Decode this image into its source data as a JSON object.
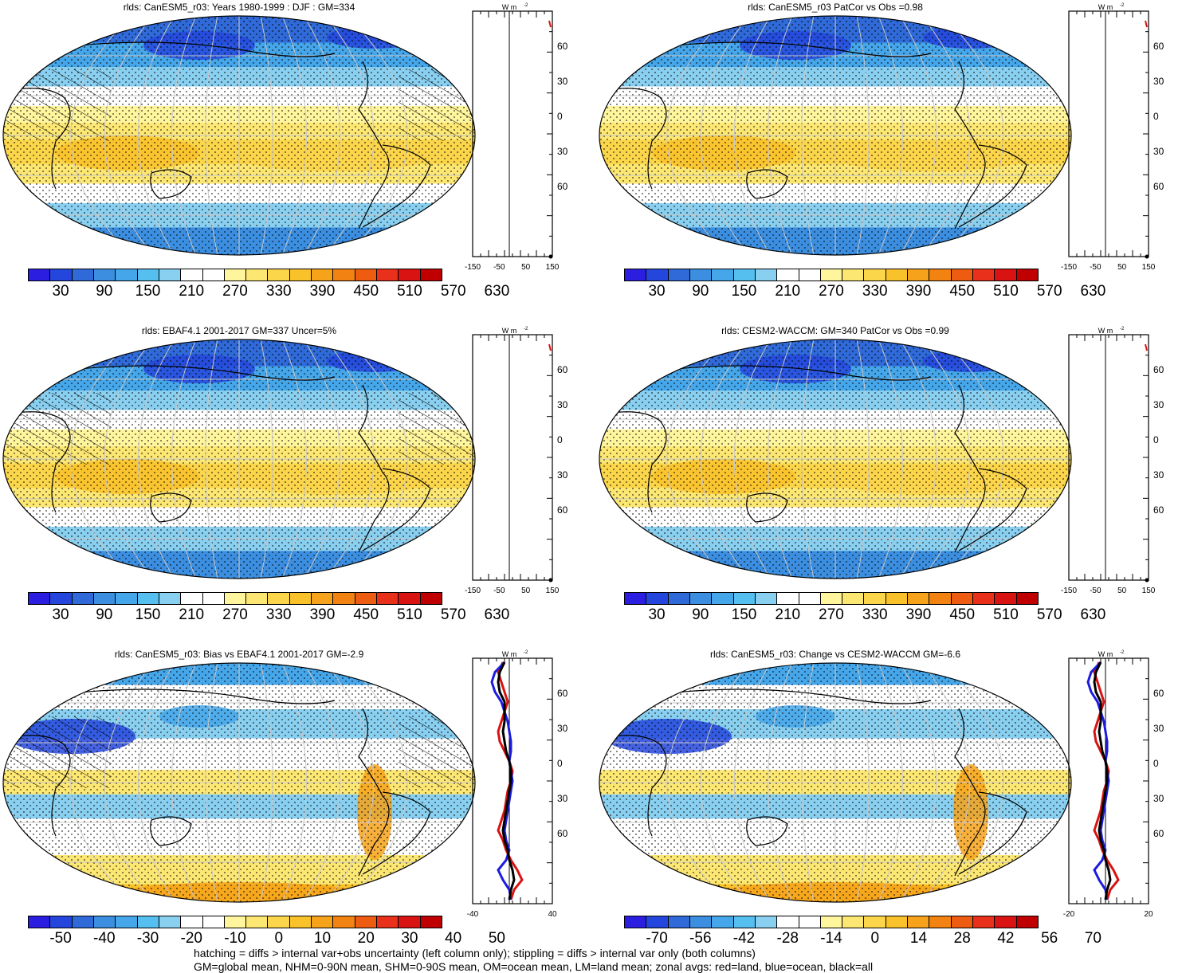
{
  "panels": [
    {
      "title": "rlds: CanESM5_r03: Years 1980-1999 : DJF : GM=334",
      "ticks": [
        "30",
        "90",
        "150",
        "210",
        "270",
        "330",
        "390",
        "450",
        "510",
        "570",
        "630"
      ],
      "scale": "abs",
      "zonal_ticks": [
        "-150",
        "-50",
        "50",
        "150"
      ],
      "zonal_unit": "W m",
      "lines": false
    },
    {
      "title": "rlds: CanESM5_r03 PatCor vs Obs =0.98",
      "ticks": [
        "30",
        "90",
        "150",
        "210",
        "270",
        "330",
        "390",
        "450",
        "510",
        "570",
        "630"
      ],
      "scale": "abs",
      "zonal_ticks": [
        "-150",
        "-50",
        "50",
        "150"
      ],
      "zonal_unit": "W m",
      "lines": false
    },
    {
      "title": "rlds: EBAF4.1 2001-2017 GM=337 Uncer=5%",
      "ticks": [
        "30",
        "90",
        "150",
        "210",
        "270",
        "330",
        "390",
        "450",
        "510",
        "570",
        "630"
      ],
      "scale": "abs",
      "zonal_ticks": [
        "-150",
        "-50",
        "50",
        "150"
      ],
      "zonal_unit": "W m",
      "lines": false
    },
    {
      "title": "rlds: CESM2-WACCM: GM=340 PatCor vs Obs =0.99",
      "ticks": [
        "30",
        "90",
        "150",
        "210",
        "270",
        "330",
        "390",
        "450",
        "510",
        "570",
        "630"
      ],
      "scale": "abs",
      "zonal_ticks": [
        "-150",
        "-50",
        "50",
        "150"
      ],
      "zonal_unit": "W m",
      "lines": false
    },
    {
      "title": "rlds: CanESM5_r03: Bias vs EBAF4.1 2001-2017 GM=-2.9",
      "ticks": [
        "-50",
        "-40",
        "-30",
        "-20",
        "-10",
        "0",
        "10",
        "20",
        "30",
        "40",
        "50"
      ],
      "scale": "diff",
      "zonal_ticks": [
        "-40",
        "40"
      ],
      "zonal_unit": "W m",
      "lines": true
    },
    {
      "title": "rlds: CanESM5_r03: Change vs CESM2-WACCM GM=-6.6",
      "ticks": [
        "-70",
        "-56",
        "-42",
        "-28",
        "-14",
        "0",
        "14",
        "28",
        "42",
        "56",
        "70"
      ],
      "scale": "diff",
      "zonal_ticks": [
        "-20",
        "20"
      ],
      "zonal_unit": "W m",
      "lines": true
    }
  ],
  "lat_labels": [
    "60N",
    "30N",
    "0",
    "30S",
    "60S"
  ],
  "footer": {
    "line1": "hatching = diffs > internal var+obs uncertainty (left column only); stippling = diffs > internal var only (both columns)",
    "line2": "GM=global mean, NHM=0-90N mean, SHM=0-90S mean, OM=ocean mean, LM=land mean; zonal avgs: red=land, blue=ocean, black=all"
  },
  "colors": {
    "abs_palette": [
      "#2b1ee0",
      "#2446dd",
      "#2f6ad8",
      "#3b8ee0",
      "#45a6ea",
      "#55bff0",
      "#89cff0",
      "#ffffff",
      "#ffffff",
      "#fff59c",
      "#fde773",
      "#fbd54a",
      "#f9c12a",
      "#f6a21a",
      "#f28313",
      "#ee5c12",
      "#e8301a",
      "#d91212",
      "#c00000"
    ],
    "diff_palette": [
      "#2b1ee0",
      "#2446dd",
      "#2f6ad8",
      "#3b8ee0",
      "#45a6ea",
      "#55bff0",
      "#89cff0",
      "#ffffff",
      "#ffffff",
      "#fff59c",
      "#fde773",
      "#fbd54a",
      "#f9c12a",
      "#f6a21a",
      "#f28313",
      "#ee5c12",
      "#e8301a",
      "#d91212",
      "#c00000"
    ],
    "land": "#d91212",
    "ocean": "#1c1ce0",
    "all": "#000000"
  }
}
